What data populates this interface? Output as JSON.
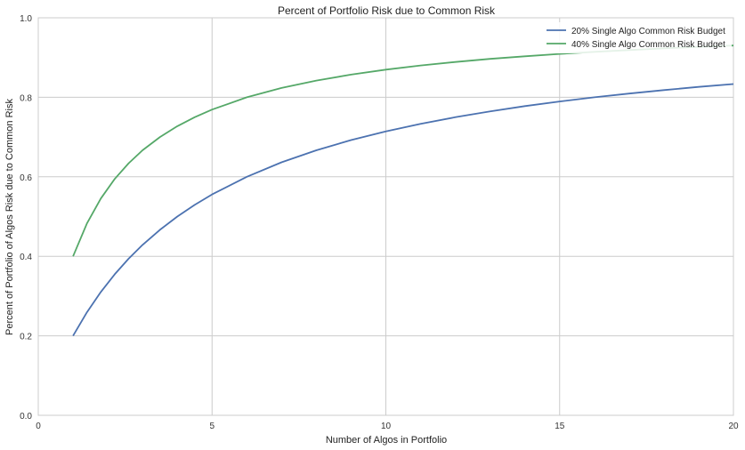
{
  "chart_data": {
    "type": "line",
    "title": "Percent of Portfolio Risk due to Common Risk",
    "xlabel": "Number of Algos in Portfolio",
    "ylabel": "Percent of Portfolio of Algos Risk due to Common Risk",
    "xlim": [
      0,
      20
    ],
    "ylim": [
      0.0,
      1.0
    ],
    "xticks": [
      0,
      5,
      10,
      15,
      20
    ],
    "xtick_labels": [
      "0",
      "5",
      "10",
      "15",
      "20"
    ],
    "yticks": [
      0.0,
      0.2,
      0.4,
      0.6,
      0.8,
      1.0
    ],
    "ytick_labels": [
      "0.0",
      "0.2",
      "0.4",
      "0.6",
      "0.8",
      "1.0"
    ],
    "grid": true,
    "legend_position": "top-right",
    "x": [
      1,
      1.4,
      1.8,
      2.2,
      2.6,
      3,
      3.5,
      4,
      4.5,
      5,
      6,
      7,
      8,
      9,
      10,
      11,
      12,
      13,
      14,
      15,
      16,
      17,
      18,
      19,
      20
    ],
    "series": [
      {
        "name": "20% Single Algo Common Risk Budget",
        "color": "#4c72b0",
        "values": [
          0.2,
          0.2593,
          0.3103,
          0.3548,
          0.3939,
          0.4286,
          0.4667,
          0.5,
          0.5294,
          0.5556,
          0.6,
          0.6364,
          0.6667,
          0.6923,
          0.7143,
          0.7333,
          0.75,
          0.7647,
          0.7778,
          0.7895,
          0.8,
          0.8095,
          0.8182,
          0.8261,
          0.8333
        ]
      },
      {
        "name": "40% Single Algo Common Risk Budget",
        "color": "#55a868",
        "values": [
          0.4,
          0.4828,
          0.5455,
          0.5946,
          0.6341,
          0.6667,
          0.7,
          0.7273,
          0.75,
          0.7692,
          0.8,
          0.8235,
          0.8421,
          0.8571,
          0.8696,
          0.88,
          0.8889,
          0.8966,
          0.9032,
          0.9091,
          0.9143,
          0.9189,
          0.9231,
          0.9268,
          0.9302
        ]
      }
    ]
  }
}
